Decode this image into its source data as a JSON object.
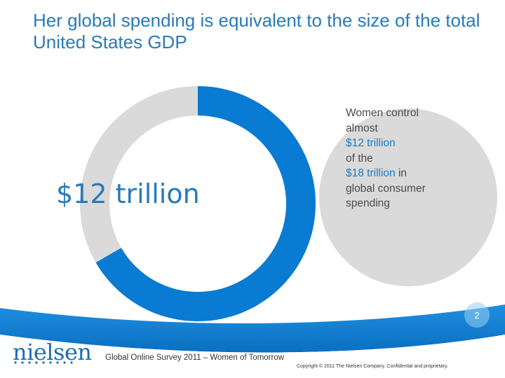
{
  "slide": {
    "title": "Her global spending is equivalent to the size of the total United States GDP",
    "page_number": "2"
  },
  "callout": {
    "line1": "Women control",
    "line2": "almost",
    "highlight1": "$12 trillion",
    "line3": "of the",
    "highlight2": "$18 trillion",
    "line4": " in",
    "line5": "global consumer",
    "line6": "spending"
  },
  "footer": {
    "logo_text": "nielsen",
    "survey": "Global Online Survey 2011 – Women of Tomorrow",
    "copyright": "Copyright © 2011 The Nielsen Company. Confidential and proprietary."
  },
  "colors": {
    "women_share": "#0a7bd2",
    "remainder": "#dadada",
    "callout_circle": "#dadada",
    "title": "#2a7ab8",
    "band": "#0a7bd2"
  },
  "chart_data": {
    "type": "pie",
    "style": "donut",
    "title": "",
    "center_label": "$12 trillion",
    "total": 18,
    "slices": [
      {
        "value": 12,
        "color": "#0a7bd2"
      },
      {
        "value": 6,
        "color": "#dadada"
      }
    ],
    "legend": "none"
  }
}
